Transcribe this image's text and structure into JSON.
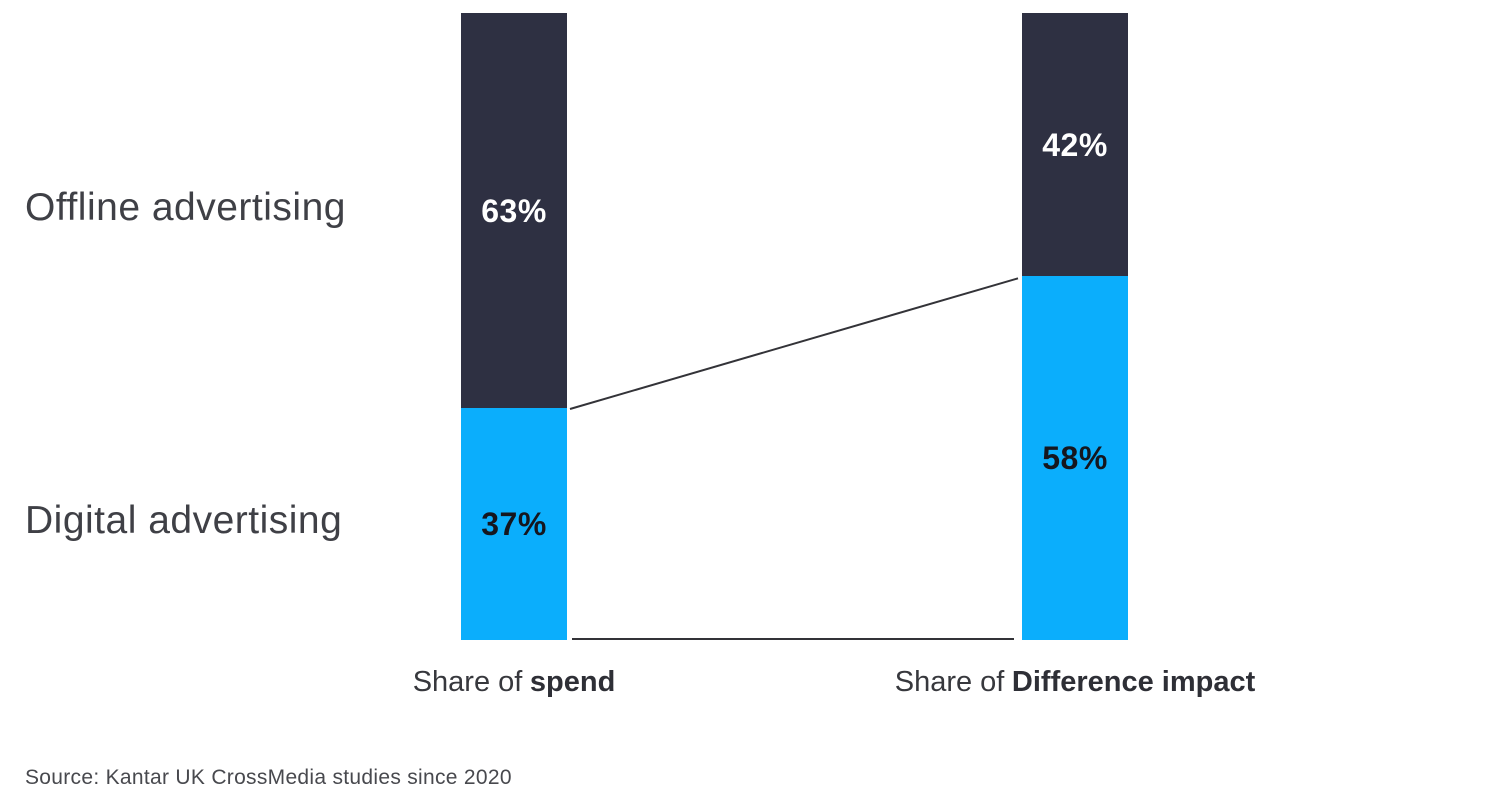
{
  "chart_data": {
    "type": "bar",
    "variant": "stacked-percentage-comparison",
    "title": "",
    "categories": [
      "Share of spend",
      "Share of Difference impact"
    ],
    "series": [
      {
        "name": "Offline advertising",
        "color": "#2E3042",
        "values": [
          63,
          42
        ],
        "display_values": [
          "63%",
          "42%"
        ],
        "label_color": "#FFFFFF"
      },
      {
        "name": "Digital advertising",
        "color": "#0BAEFC",
        "values": [
          37,
          58
        ],
        "display_values": [
          "37%",
          "58%"
        ],
        "label_color": "#15161E"
      }
    ],
    "x_axis": {
      "prefix": "Share of",
      "emphasis": [
        "spend",
        "Difference impact"
      ]
    },
    "ylim": [
      0,
      100
    ],
    "grid": false,
    "legend_position": "left-row-labels",
    "connector_color": "#333338",
    "background": "#FFFFFF",
    "source": "Source: Kantar UK CrossMedia studies since 2020"
  }
}
